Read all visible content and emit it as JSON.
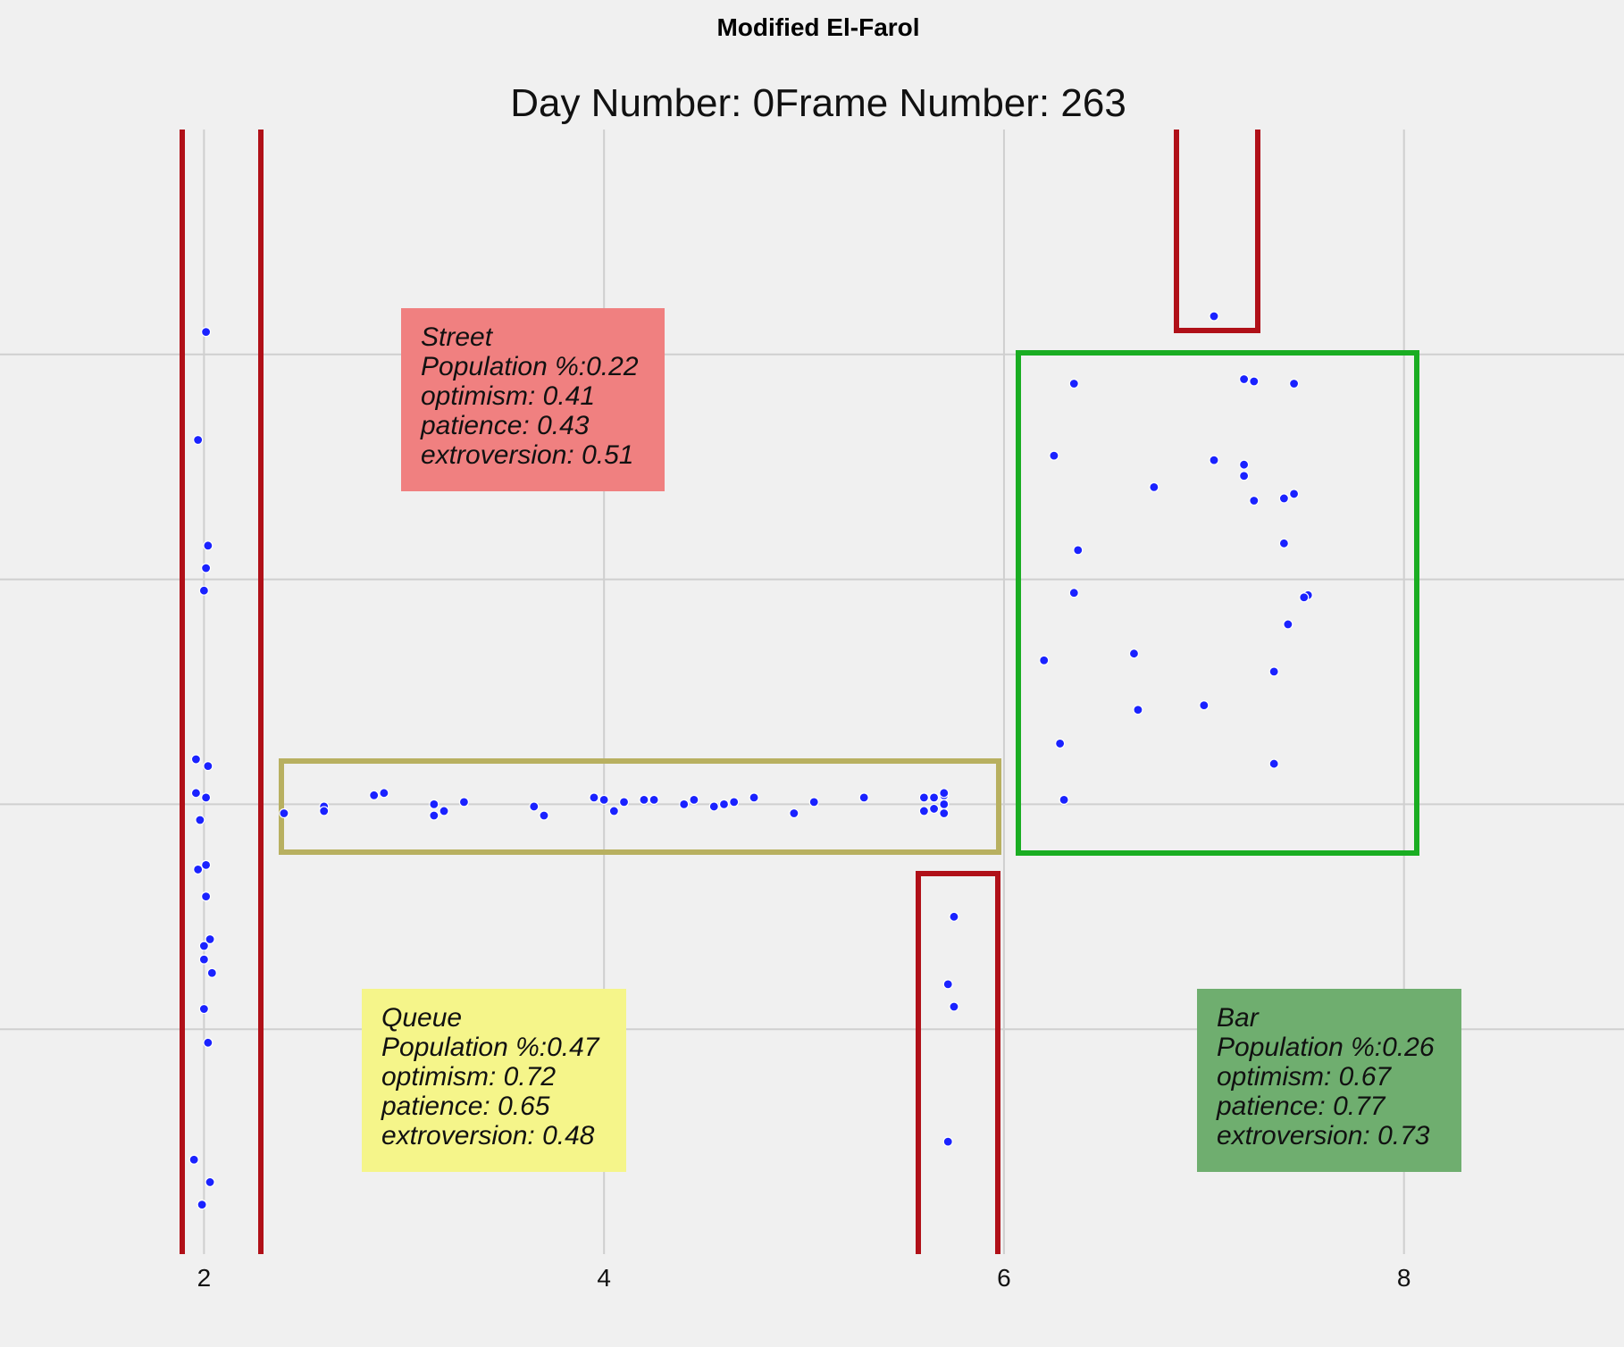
{
  "chart_data": {
    "type": "scatter",
    "suptitle": "Modified El-Farol",
    "title": "Day Number: 0Frame Number: 263",
    "xlabel": "",
    "ylabel": "",
    "xlim": [
      0.98,
      9.1
    ],
    "ylim": [
      -2.0,
      3.0
    ],
    "grid": true,
    "xticks": [
      2,
      4,
      6,
      8
    ],
    "yticks": [
      -1,
      0,
      1,
      2
    ],
    "colors": {
      "background": "#f0f0f0",
      "grid": "#cfcfcf",
      "points": "#1a22ff",
      "street_walls": "#b01018",
      "queue_border": "#b8b060",
      "bar_border": "#1aad22"
    },
    "points": [
      [
        2.01,
        2.1
      ],
      [
        1.97,
        1.62
      ],
      [
        2.02,
        1.15
      ],
      [
        2.01,
        1.05
      ],
      [
        2.0,
        0.95
      ],
      [
        1.96,
        0.2
      ],
      [
        2.02,
        0.17
      ],
      [
        1.96,
        0.05
      ],
      [
        2.01,
        0.03
      ],
      [
        1.98,
        -0.07
      ],
      [
        1.97,
        -0.29
      ],
      [
        2.01,
        -0.27
      ],
      [
        2.01,
        -0.41
      ],
      [
        2.03,
        -0.6
      ],
      [
        2.0,
        -0.63
      ],
      [
        2.0,
        -0.69
      ],
      [
        2.04,
        -0.75
      ],
      [
        2.0,
        -0.91
      ],
      [
        2.02,
        -1.06
      ],
      [
        1.95,
        -1.58
      ],
      [
        2.03,
        -1.68
      ],
      [
        1.99,
        -1.78
      ],
      [
        2.4,
        -0.04
      ],
      [
        2.6,
        -0.01
      ],
      [
        2.6,
        -0.03
      ],
      [
        2.85,
        0.04
      ],
      [
        2.9,
        0.05
      ],
      [
        3.15,
        0.0
      ],
      [
        3.15,
        -0.05
      ],
      [
        3.2,
        -0.03
      ],
      [
        3.3,
        0.01
      ],
      [
        3.65,
        -0.01
      ],
      [
        3.7,
        -0.05
      ],
      [
        3.95,
        0.03
      ],
      [
        4.0,
        0.02
      ],
      [
        4.05,
        -0.03
      ],
      [
        4.1,
        0.01
      ],
      [
        4.2,
        0.02
      ],
      [
        4.25,
        0.02
      ],
      [
        4.4,
        0.0
      ],
      [
        4.45,
        0.02
      ],
      [
        4.55,
        -0.01
      ],
      [
        4.6,
        0.0
      ],
      [
        4.65,
        0.01
      ],
      [
        4.75,
        0.03
      ],
      [
        4.95,
        -0.04
      ],
      [
        5.05,
        0.01
      ],
      [
        5.3,
        0.03
      ],
      [
        5.6,
        0.03
      ],
      [
        5.6,
        -0.03
      ],
      [
        5.65,
        0.03
      ],
      [
        5.65,
        -0.02
      ],
      [
        5.7,
        0.04
      ],
      [
        5.7,
        0.0
      ],
      [
        5.7,
        -0.04
      ],
      [
        5.7,
        0.05
      ],
      [
        5.75,
        -0.5
      ],
      [
        5.72,
        -0.8
      ],
      [
        5.75,
        -0.9
      ],
      [
        5.72,
        -1.5
      ],
      [
        7.05,
        2.17
      ],
      [
        6.35,
        1.87
      ],
      [
        7.2,
        1.89
      ],
      [
        7.25,
        1.88
      ],
      [
        7.45,
        1.87
      ],
      [
        6.25,
        1.55
      ],
      [
        7.05,
        1.53
      ],
      [
        7.2,
        1.51
      ],
      [
        7.2,
        1.46
      ],
      [
        6.75,
        1.41
      ],
      [
        7.25,
        1.35
      ],
      [
        7.4,
        1.36
      ],
      [
        7.45,
        1.38
      ],
      [
        7.4,
        1.16
      ],
      [
        6.37,
        1.13
      ],
      [
        6.35,
        0.94
      ],
      [
        7.52,
        0.93
      ],
      [
        7.5,
        0.92
      ],
      [
        7.42,
        0.8
      ],
      [
        6.2,
        0.64
      ],
      [
        6.65,
        0.67
      ],
      [
        7.35,
        0.59
      ],
      [
        6.67,
        0.42
      ],
      [
        7.0,
        0.44
      ],
      [
        6.28,
        0.27
      ],
      [
        7.35,
        0.18
      ],
      [
        6.3,
        0.02
      ]
    ],
    "regions": [
      {
        "name": "Street",
        "lines": [
          "Street",
          "Population %:0.22",
          "optimism: 0.41",
          "patience: 0.43",
          "extroversion: 0.51"
        ],
        "box_color": "#f08080"
      },
      {
        "name": "Queue",
        "lines": [
          "Queue",
          "Population %:0.47",
          "optimism: 0.72",
          "patience: 0.65",
          "extroversion: 0.48"
        ],
        "box_color": "#f5f58a"
      },
      {
        "name": "Bar",
        "lines": [
          "Bar",
          "Population %:0.26",
          "optimism: 0.67",
          "patience: 0.77",
          "extroversion: 0.73"
        ],
        "box_color": "#6fae6f"
      }
    ]
  }
}
